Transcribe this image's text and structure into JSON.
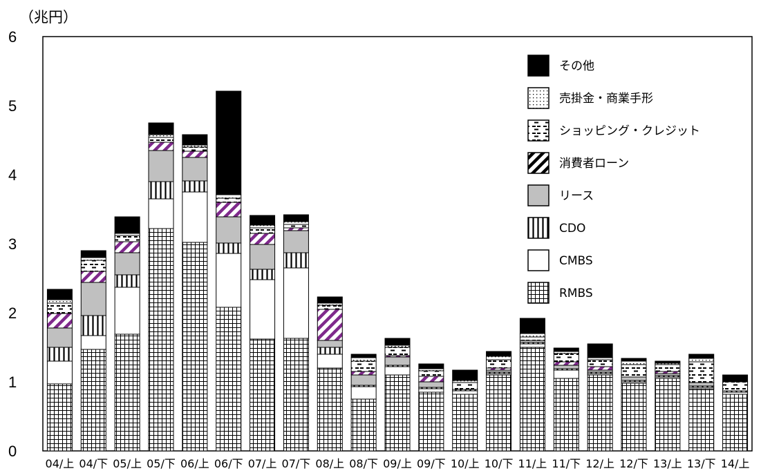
{
  "chart_data": {
    "type": "bar",
    "stacked": true,
    "unit_label": "（兆円）",
    "ylim": [
      0,
      6
    ],
    "yticks": [
      "0",
      "1",
      "2",
      "3",
      "4",
      "5",
      "6"
    ],
    "grid": false,
    "legend_position": "top-right",
    "categories": [
      "04/上",
      "04/下",
      "05/上",
      "05/下",
      "06/上",
      "06/下",
      "07/上",
      "07/下",
      "08/上",
      "08/下",
      "09/上",
      "09/下",
      "10/上",
      "10/下",
      "11/上",
      "11/下",
      "12/上",
      "12/下",
      "13/上",
      "13/下",
      "14/上"
    ],
    "series": [
      {
        "name": "RMBS",
        "key": "rmbs",
        "values": [
          0.97,
          1.47,
          1.69,
          3.22,
          3.02,
          2.08,
          1.62,
          1.63,
          1.2,
          0.75,
          1.1,
          0.85,
          0.82,
          1.1,
          1.5,
          1.05,
          1.1,
          0.98,
          1.05,
          0.9,
          0.82
        ]
      },
      {
        "name": "CMBS",
        "key": "cmbs",
        "values": [
          0.33,
          0.2,
          0.68,
          0.43,
          0.73,
          0.78,
          0.86,
          1.02,
          0.2,
          0.18,
          0.12,
          0.05,
          0.05,
          0.02,
          0.05,
          0.12,
          0.02,
          0.02,
          0.02,
          0.02,
          0.03
        ]
      },
      {
        "name": "CDO",
        "key": "cdo",
        "values": [
          0.2,
          0.29,
          0.18,
          0.25,
          0.16,
          0.15,
          0.15,
          0.22,
          0.1,
          0.02,
          0.02,
          0.02,
          0.02,
          0.02,
          0.02,
          0.02,
          0.02,
          0.02,
          0.02,
          0.02,
          0.02
        ]
      },
      {
        "name": "リース",
        "key": "lease",
        "values": [
          0.28,
          0.48,
          0.32,
          0.45,
          0.34,
          0.38,
          0.36,
          0.32,
          0.1,
          0.15,
          0.12,
          0.08,
          0.0,
          0.03,
          0.03,
          0.05,
          0.03,
          0.05,
          0.03,
          0.05,
          0.0
        ]
      },
      {
        "name": "消費者ローン",
        "key": "consumer",
        "values": [
          0.21,
          0.16,
          0.16,
          0.12,
          0.09,
          0.21,
          0.16,
          0.04,
          0.45,
          0.05,
          0.02,
          0.08,
          0.0,
          0.03,
          0.0,
          0.05,
          0.05,
          0.0,
          0.03,
          0.0,
          0.0
        ]
      },
      {
        "name": "ショッピング・クレジット",
        "key": "shopping",
        "values": [
          0.15,
          0.16,
          0.09,
          0.07,
          0.06,
          0.06,
          0.08,
          0.05,
          0.06,
          0.15,
          0.12,
          0.08,
          0.1,
          0.12,
          0.05,
          0.12,
          0.1,
          0.18,
          0.1,
          0.3,
          0.13
        ]
      },
      {
        "name": "売掛金・商業手形",
        "key": "receivables",
        "values": [
          0.05,
          0.04,
          0.03,
          0.04,
          0.03,
          0.05,
          0.04,
          0.04,
          0.03,
          0.05,
          0.03,
          0.03,
          0.03,
          0.05,
          0.05,
          0.03,
          0.03,
          0.05,
          0.02,
          0.05,
          0.0
        ]
      },
      {
        "name": "その他",
        "key": "other",
        "values": [
          0.15,
          0.1,
          0.24,
          0.17,
          0.15,
          1.5,
          0.14,
          0.1,
          0.09,
          0.05,
          0.1,
          0.07,
          0.15,
          0.07,
          0.22,
          0.05,
          0.2,
          0.04,
          0.03,
          0.06,
          0.1
        ]
      }
    ],
    "legend_order": [
      "other",
      "receivables",
      "shopping",
      "consumer",
      "lease",
      "cdo",
      "cmbs",
      "rmbs"
    ]
  }
}
